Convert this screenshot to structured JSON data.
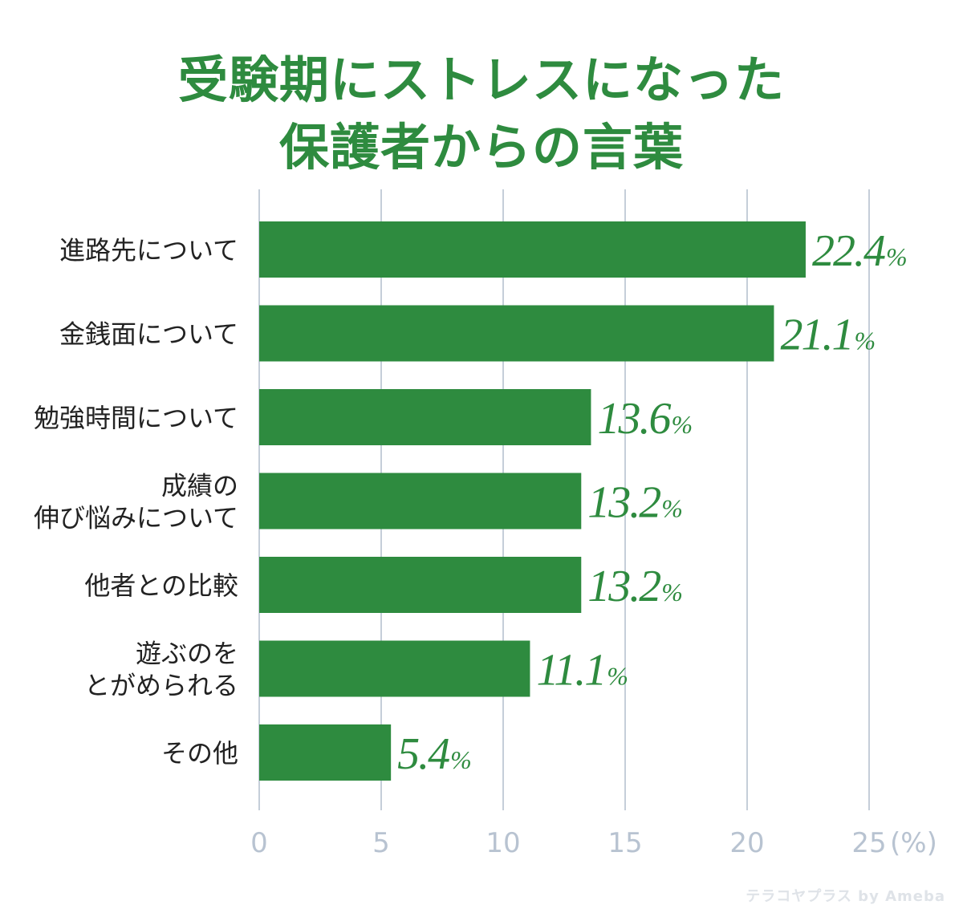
{
  "chart_data": {
    "type": "bar",
    "orientation": "horizontal",
    "title_lines": [
      "受験期にストレスになった",
      "保護者からの言葉"
    ],
    "categories": [
      [
        "進路先について"
      ],
      [
        "金銭面について"
      ],
      [
        "勉強時間について"
      ],
      [
        "成績の",
        "伸び悩みについて"
      ],
      [
        "他者との比較"
      ],
      [
        "遊ぶのを",
        "とがめられる"
      ],
      [
        "その他"
      ]
    ],
    "values": [
      22.4,
      21.1,
      13.6,
      13.2,
      13.2,
      11.1,
      5.4
    ],
    "value_suffix": "%",
    "xlim": [
      0,
      25
    ],
    "xticks": [
      0,
      5,
      10,
      15,
      20,
      25
    ],
    "x_unit_label": "(%)",
    "grid": true,
    "colors": {
      "bar": "#2e8b3f",
      "title": "#2e8b3f",
      "value_label": "#2e8b3f",
      "grid": "#c5ced9",
      "tick_label": "#b8c3d1",
      "category_label": "#222222"
    }
  },
  "watermark": "テラコヤプラス by Ameba"
}
